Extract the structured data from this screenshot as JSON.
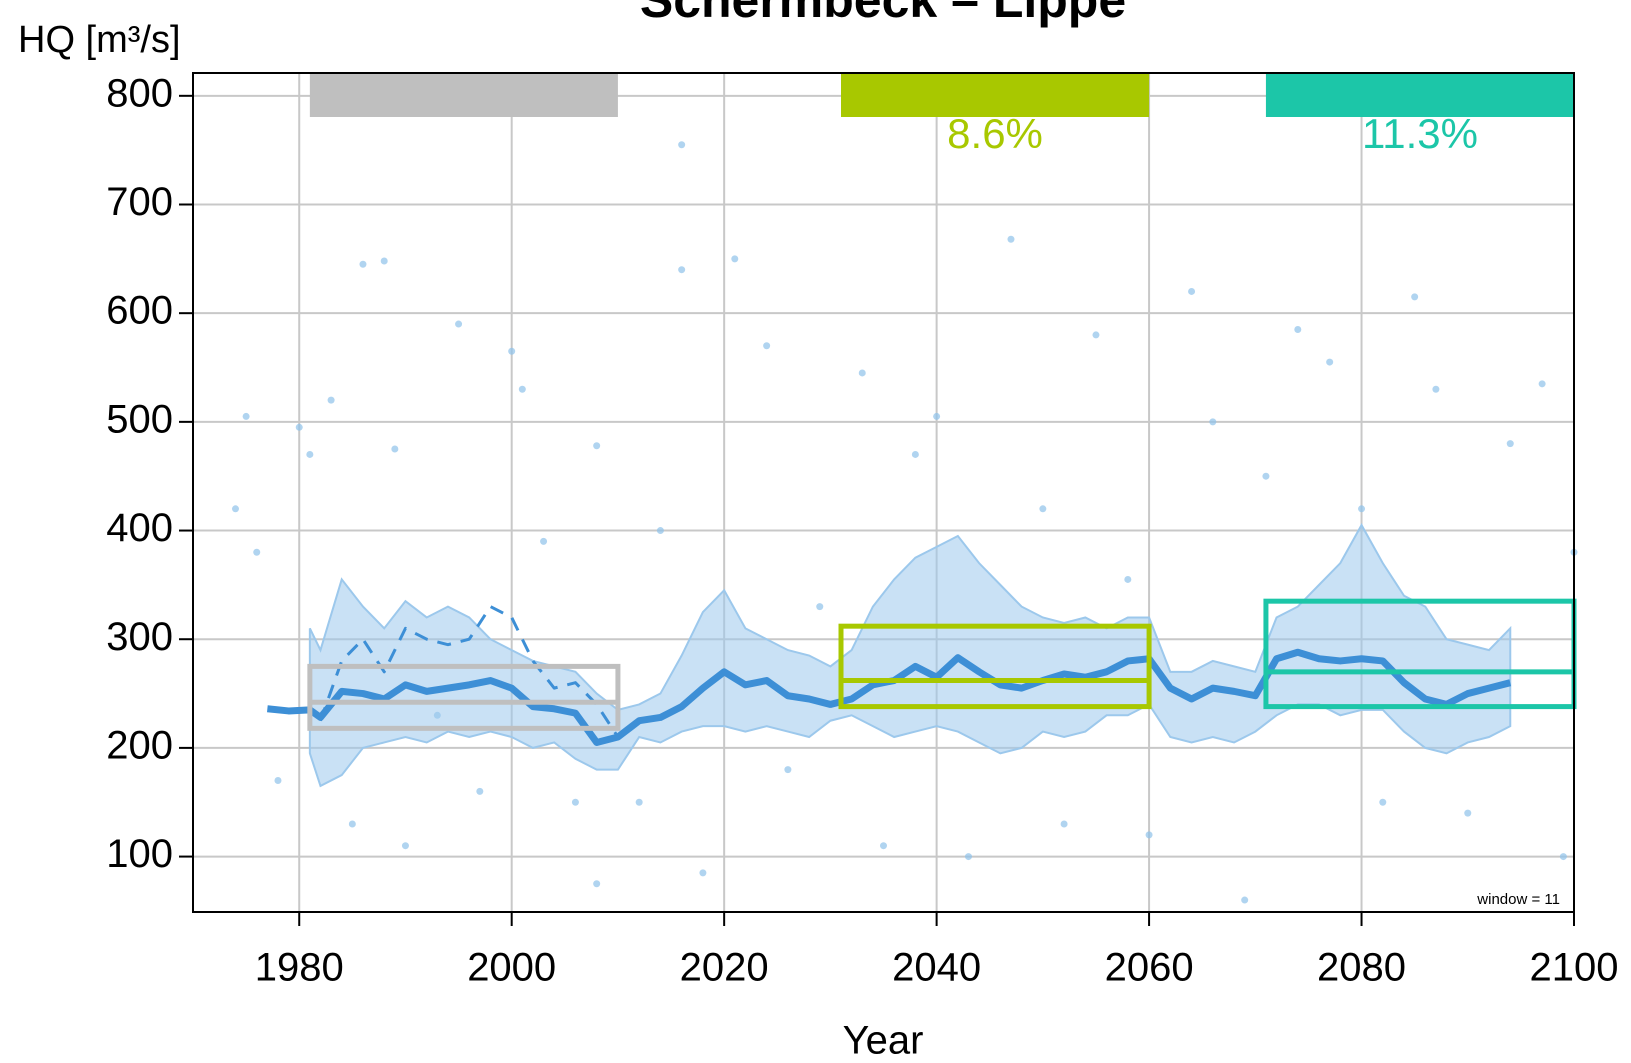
{
  "chart_data": {
    "type": "line",
    "title": "Schermbeck  –  Lippe",
    "y_label": "HQ [m³/s]",
    "x_label": "Year",
    "annotation": "window =  11",
    "xlim": [
      1970,
      2100
    ],
    "xticks": [
      1980,
      2000,
      2020,
      2040,
      2060,
      2080,
      2100
    ],
    "ylim": [
      49,
      821
    ],
    "yticks": [
      100,
      200,
      300,
      400,
      500,
      600,
      700,
      800
    ],
    "grid": true,
    "points": {
      "color": "#8ec2ea",
      "x": [
        1974,
        1975,
        1976,
        1978,
        1980,
        1981,
        1983,
        1985,
        1986,
        1988,
        1989,
        1990,
        1993,
        1995,
        1997,
        2000,
        2001,
        2003,
        2006,
        2008,
        2008,
        2012,
        2014,
        2016,
        2016,
        2018,
        2021,
        2024,
        2026,
        2029,
        2033,
        2035,
        2038,
        2040,
        2043,
        2047,
        2050,
        2052,
        2055,
        2058,
        2060,
        2064,
        2066,
        2069,
        2071,
        2074,
        2077,
        2080,
        2082,
        2085,
        2087,
        2090,
        2094,
        2097,
        2099,
        2100
      ],
      "y": [
        420,
        505,
        380,
        170,
        495,
        470,
        520,
        130,
        645,
        648,
        475,
        110,
        230,
        590,
        160,
        565,
        530,
        390,
        150,
        478,
        75,
        150,
        400,
        755,
        640,
        85,
        650,
        570,
        180,
        330,
        545,
        110,
        470,
        505,
        100,
        668,
        420,
        130,
        580,
        355,
        120,
        620,
        500,
        60,
        450,
        585,
        555,
        420,
        150,
        615,
        530,
        140,
        480,
        535,
        100,
        380
      ]
    },
    "band": {
      "color": "#9cc8ec",
      "x": [
        1981,
        1982,
        1984,
        1986,
        1988,
        1990,
        1992,
        1994,
        1996,
        1998,
        2000,
        2002,
        2004,
        2006,
        2008,
        2010,
        2012,
        2014,
        2016,
        2018,
        2020,
        2022,
        2024,
        2026,
        2028,
        2030,
        2032,
        2034,
        2036,
        2038,
        2040,
        2042,
        2044,
        2046,
        2048,
        2050,
        2052,
        2054,
        2056,
        2058,
        2060,
        2062,
        2064,
        2066,
        2068,
        2070,
        2072,
        2074,
        2076,
        2078,
        2080,
        2082,
        2084,
        2086,
        2088,
        2090,
        2092,
        2094
      ],
      "upper": [
        310,
        290,
        355,
        330,
        310,
        335,
        320,
        330,
        320,
        300,
        290,
        280,
        275,
        270,
        250,
        235,
        240,
        250,
        285,
        325,
        345,
        310,
        300,
        290,
        285,
        275,
        290,
        330,
        355,
        375,
        385,
        395,
        370,
        350,
        330,
        320,
        315,
        320,
        310,
        320,
        320,
        270,
        270,
        280,
        275,
        270,
        320,
        330,
        350,
        370,
        405,
        370,
        340,
        330,
        300,
        295,
        290,
        310
      ],
      "lower": [
        195,
        165,
        175,
        200,
        205,
        210,
        205,
        215,
        210,
        215,
        210,
        200,
        205,
        190,
        180,
        180,
        210,
        205,
        215,
        220,
        220,
        215,
        220,
        215,
        210,
        225,
        230,
        220,
        210,
        215,
        220,
        215,
        205,
        195,
        200,
        215,
        210,
        215,
        230,
        230,
        240,
        210,
        205,
        210,
        205,
        215,
        230,
        240,
        240,
        230,
        235,
        235,
        215,
        200,
        195,
        205,
        210,
        220
      ]
    },
    "median": {
      "color": "#3d8fd6",
      "x": [
        1977,
        1979,
        1981,
        1982,
        1984,
        1986,
        1988,
        1990,
        1992,
        1994,
        1996,
        1998,
        2000,
        2002,
        2004,
        2006,
        2008,
        2010,
        2012,
        2014,
        2016,
        2018,
        2020,
        2022,
        2024,
        2026,
        2028,
        2030,
        2032,
        2034,
        2036,
        2038,
        2040,
        2042,
        2044,
        2046,
        2048,
        2050,
        2052,
        2054,
        2056,
        2058,
        2060,
        2062,
        2064,
        2066,
        2068,
        2070,
        2072,
        2074,
        2076,
        2078,
        2080,
        2082,
        2084,
        2086,
        2088,
        2090,
        2092,
        2094
      ],
      "values": [
        236,
        234,
        235,
        228,
        252,
        250,
        245,
        258,
        252,
        255,
        258,
        262,
        255,
        238,
        236,
        232,
        205,
        210,
        225,
        228,
        238,
        255,
        270,
        258,
        262,
        248,
        245,
        240,
        245,
        258,
        262,
        275,
        265,
        283,
        270,
        258,
        255,
        262,
        268,
        265,
        270,
        280,
        282,
        255,
        245,
        255,
        252,
        248,
        282,
        288,
        282,
        280,
        282,
        280,
        260,
        245,
        240,
        250,
        255,
        260
      ]
    },
    "observed": {
      "color": "#3d8fd6",
      "x": [
        1982,
        1984,
        1986,
        1988,
        1990,
        1992,
        1994,
        1996,
        1998,
        2000,
        2002,
        2004,
        2006,
        2008,
        2010
      ],
      "values": [
        225,
        280,
        300,
        270,
        310,
        300,
        295,
        300,
        330,
        320,
        280,
        255,
        260,
        240,
        210
      ]
    },
    "periods": [
      {
        "start": 1981,
        "end": 2010,
        "lower": 218,
        "median": 242,
        "upper": 275,
        "color": "#bfbfbf"
      },
      {
        "start": 2031,
        "end": 2060,
        "lower": 238,
        "median": 262,
        "upper": 312,
        "color": "#a8c800",
        "label": "8.6%"
      },
      {
        "start": 2071,
        "end": 2100,
        "lower": 238,
        "median": 270,
        "upper": 335,
        "color": "#1cc6a8",
        "label": "11.3%"
      }
    ]
  }
}
